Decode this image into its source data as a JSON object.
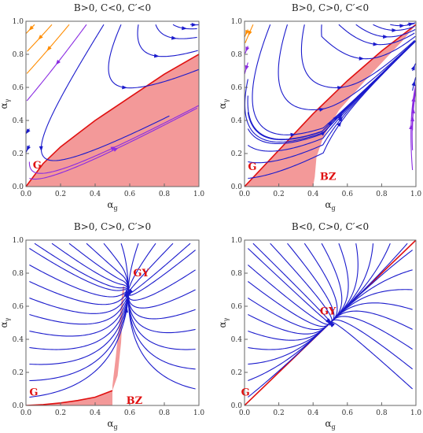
{
  "colors": {
    "region_fill": "#f08080",
    "region_edge": "#e01010",
    "fixed_point_label": "#e01010",
    "stream_low_speed": "#1a1acc",
    "stream_mid_speed": "#8a2be2",
    "stream_high_speed": "#ff8c00",
    "frame": "#666666"
  },
  "axis_labels": {
    "x": "α",
    "x_sub": "g",
    "y": "α",
    "y_sub": "γ"
  },
  "ticks": {
    "x": [
      "0.0",
      "0.2",
      "0.4",
      "0.6",
      "0.8",
      "1.0"
    ],
    "y": [
      "0.0",
      "0.2",
      "0.4",
      "0.6",
      "0.8",
      "1.0"
    ]
  },
  "panels": [
    {
      "title": "B>0, C<0, C′<0",
      "labels": [
        {
          "text": "G",
          "at": [
            0.04,
            0.11
          ]
        }
      ],
      "region_boundary": [
        [
          0,
          0
        ],
        [
          0.1,
          0.14
        ],
        [
          0.2,
          0.24
        ],
        [
          0.3,
          0.32
        ],
        [
          0.4,
          0.4
        ],
        [
          0.5,
          0.47
        ],
        [
          0.6,
          0.54
        ],
        [
          0.7,
          0.61
        ],
        [
          0.8,
          0.68
        ],
        [
          0.9,
          0.74
        ],
        [
          1.0,
          0.8
        ]
      ],
      "region_closure": [
        [
          1.0,
          0.0
        ]
      ],
      "separatrix": []
    },
    {
      "title": "B>0, C>0, C′<0",
      "labels": [
        {
          "text": "G",
          "at": [
            0.02,
            0.1
          ]
        },
        {
          "text": "BZ",
          "at": [
            0.44,
            0.04
          ]
        }
      ],
      "region_boundary": [
        [
          0,
          0
        ],
        [
          0.2,
          0.22
        ],
        [
          0.4,
          0.44
        ],
        [
          0.6,
          0.64
        ],
        [
          0.8,
          0.82
        ],
        [
          1.0,
          0.98
        ]
      ],
      "region_closure": [
        [
          0.92,
          0.88
        ],
        [
          0.72,
          0.66
        ],
        [
          0.55,
          0.46
        ],
        [
          0.46,
          0.3
        ],
        [
          0.42,
          0.18
        ],
        [
          0.41,
          0.06
        ],
        [
          0.4,
          0.0
        ]
      ],
      "separatrix": []
    },
    {
      "title": "B>0, C>0, C′>0",
      "labels": [
        {
          "text": "GY",
          "at": [
            0.62,
            0.78
          ]
        },
        {
          "text": "G",
          "at": [
            0.02,
            0.06
          ]
        },
        {
          "text": "BZ",
          "at": [
            0.58,
            0.01
          ]
        }
      ],
      "region_boundary": [
        [
          0,
          0
        ],
        [
          0.1,
          0.005
        ],
        [
          0.2,
          0.015
        ],
        [
          0.3,
          0.03
        ],
        [
          0.4,
          0.05
        ],
        [
          0.5,
          0.09
        ]
      ],
      "region_closure": [
        [
          0.53,
          0.18
        ],
        [
          0.55,
          0.38
        ],
        [
          0.56,
          0.58
        ],
        [
          0.57,
          0.72
        ],
        [
          0.56,
          0.72
        ],
        [
          0.52,
          0.3
        ],
        [
          0.5,
          0.12
        ],
        [
          0.5,
          0.0
        ]
      ],
      "separatrix": []
    },
    {
      "title": "B<0, C>0, C′<0",
      "labels": [
        {
          "text": "GY",
          "at": [
            0.44,
            0.55
          ]
        },
        {
          "text": "G",
          "at": [
            -0.02,
            0.06
          ]
        }
      ],
      "region_boundary": [],
      "region_closure": [],
      "separatrix": [
        [
          0,
          0
        ],
        [
          1.0,
          1.0
        ]
      ]
    }
  ]
}
